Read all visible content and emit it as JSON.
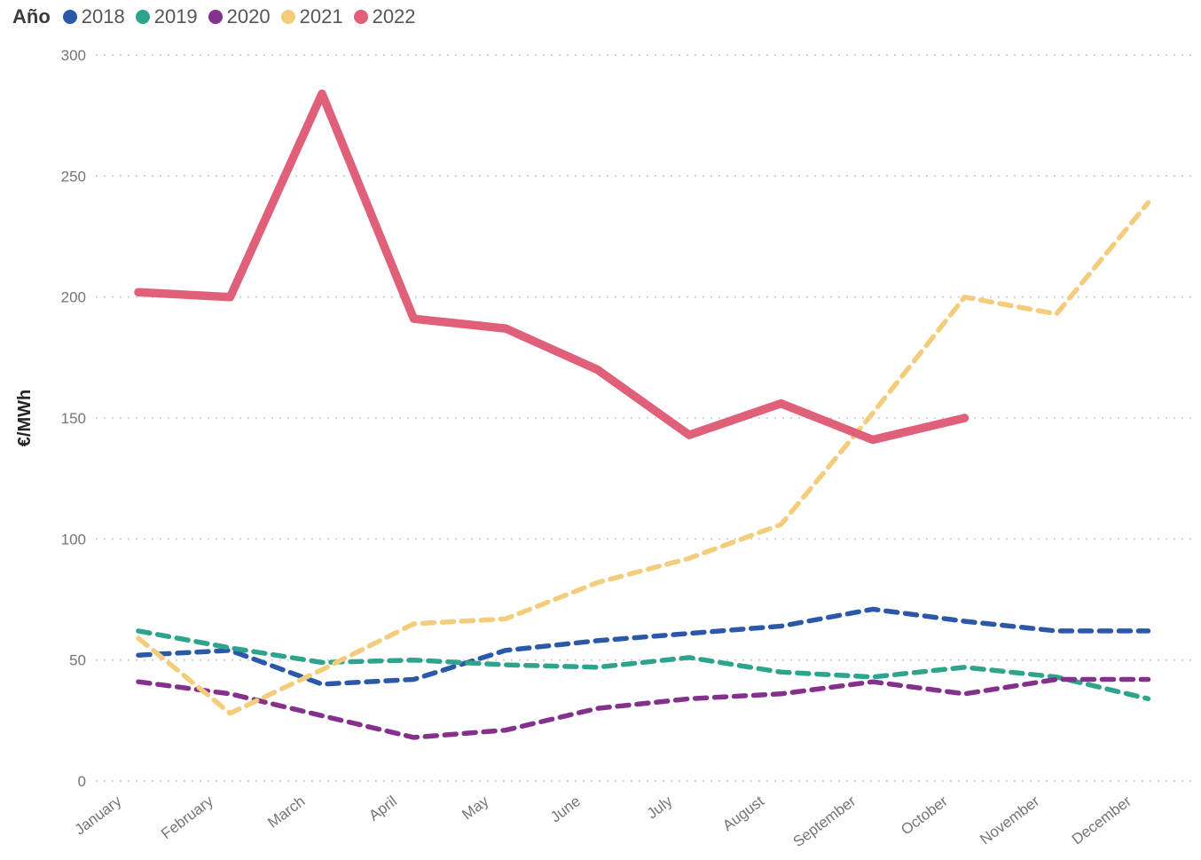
{
  "chart_data": {
    "type": "line",
    "legend_title": "Año",
    "title": "",
    "xlabel": "",
    "ylabel": "€/MWh",
    "ylim": [
      0,
      300
    ],
    "y_ticks": [
      "0",
      "50",
      "100",
      "150",
      "200",
      "250",
      "300"
    ],
    "grid": "horizontal-dotted",
    "legend_position": "top-left",
    "categories": [
      "January",
      "February",
      "March",
      "April",
      "May",
      "June",
      "July",
      "August",
      "September",
      "October",
      "November",
      "December"
    ],
    "series": [
      {
        "name": "2018",
        "color": "#2B58A9",
        "dashed": true,
        "values": [
          52,
          54,
          40,
          42,
          54,
          58,
          61,
          64,
          71,
          66,
          62,
          62
        ]
      },
      {
        "name": "2019",
        "color": "#2FA48C",
        "dashed": true,
        "values": [
          62,
          55,
          49,
          50,
          48,
          47,
          51,
          45,
          43,
          47,
          43,
          34
        ]
      },
      {
        "name": "2020",
        "color": "#84308C",
        "dashed": true,
        "values": [
          41,
          36,
          27,
          18,
          21,
          30,
          34,
          36,
          41,
          36,
          42,
          42
        ]
      },
      {
        "name": "2021",
        "color": "#F3CD7B",
        "dashed": true,
        "values": [
          59,
          28,
          46,
          65,
          67,
          82,
          92,
          106,
          152,
          200,
          193,
          239
        ]
      },
      {
        "name": "2022",
        "color": "#E0607A",
        "dashed": false,
        "values": [
          202,
          200,
          284,
          191,
          187,
          170,
          143,
          156,
          141,
          150,
          null,
          null
        ]
      }
    ]
  }
}
